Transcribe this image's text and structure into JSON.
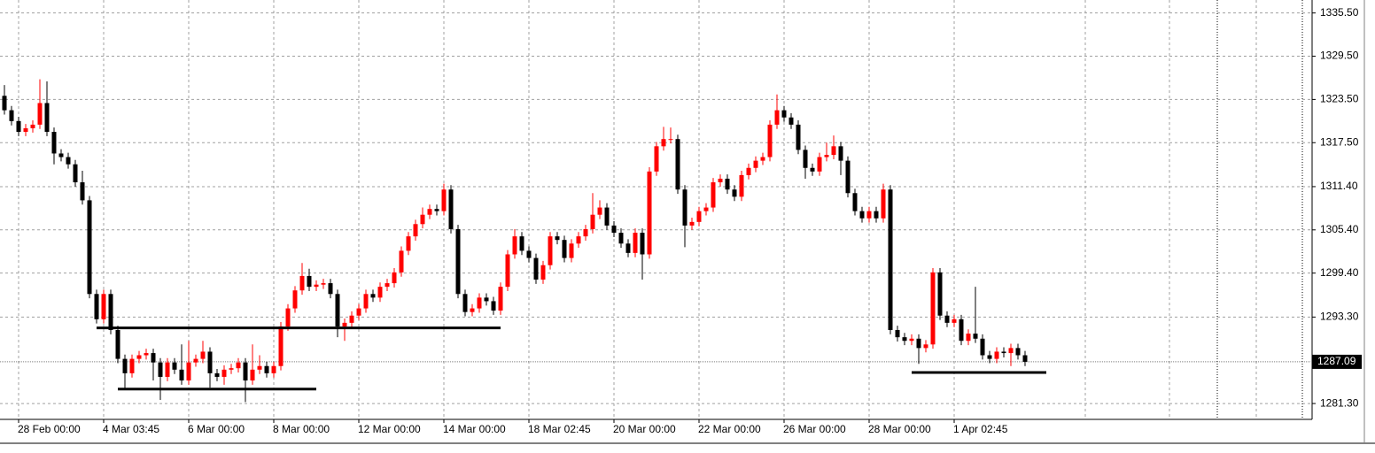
{
  "chart_data": {
    "type": "candlestick",
    "categories": [
      null,
      null,
      "28 Feb 00:00",
      null,
      null,
      null,
      null,
      null,
      null,
      null,
      null,
      null,
      null,
      null,
      "4 Mar 03:45",
      null,
      null,
      null,
      null,
      null,
      null,
      null,
      null,
      null,
      null,
      null,
      "6 Mar 00:00",
      null,
      null,
      null,
      null,
      null,
      null,
      null,
      null,
      null,
      null,
      null,
      "8 Mar 00:00",
      null,
      null,
      null,
      null,
      null,
      null,
      null,
      null,
      null,
      null,
      null,
      "12 Mar 00:00",
      null,
      null,
      null,
      null,
      null,
      null,
      null,
      null,
      null,
      null,
      null,
      "14 Mar 00:00",
      null,
      null,
      null,
      null,
      null,
      null,
      null,
      null,
      null,
      null,
      null,
      "18 Mar 02:45",
      null,
      null,
      null,
      null,
      null,
      null,
      null,
      null,
      null,
      null,
      null,
      "20 Mar 00:00",
      null,
      null,
      null,
      null,
      null,
      null,
      null,
      null,
      null,
      null,
      null,
      "22 Mar 00:00",
      null,
      null,
      null,
      null,
      null,
      null,
      null,
      null,
      null,
      null,
      null,
      "26 Mar 00:00",
      null,
      null,
      null,
      null,
      null,
      null,
      null,
      null,
      null,
      null,
      null,
      "28 Mar 00:00",
      null,
      null,
      null,
      null,
      null,
      null,
      null,
      null,
      null,
      null,
      null,
      "1 Apr 02:45",
      null,
      null,
      null,
      null,
      null,
      null,
      null,
      null,
      null,
      null
    ],
    "open": [
      1324,
      1322,
      1320.5,
      1319,
      1319.5,
      1320,
      1323,
      1319,
      1316,
      1315.5,
      1314.5,
      1312,
      1309.5,
      1296.5,
      1293,
      1296.5,
      1291.5,
      1287.5,
      1285.5,
      1287.5,
      1288,
      1288.3,
      1287,
      1285,
      1287,
      1286,
      1284.5,
      1287,
      1287.5,
      1288.5,
      1285.5,
      1285,
      1286,
      1286.2,
      1287,
      1284.5,
      1286,
      1286.5,
      1285.5,
      1286.5,
      1292,
      1294.5,
      1297,
      1299,
      1297.5,
      1297.8,
      1298,
      1296.5,
      1292,
      1292.5,
      1293.5,
      1294.5,
      1296.5,
      1296,
      1297.5,
      1298,
      1299.5,
      1302.5,
      1304.5,
      1306.2,
      1307.5,
      1308.3,
      1308,
      1311,
      1305.5,
      1296.5,
      1294,
      1294.5,
      1296,
      1295.5,
      1294.2,
      1297.5,
      1302,
      1304.5,
      1302.5,
      1301.5,
      1298.5,
      1300.5,
      1304.5,
      1304,
      1301.5,
      1303.5,
      1304.5,
      1305.5,
      1307.5,
      1308.5,
      1306,
      1305,
      1303.5,
      1302.2,
      1305,
      1302,
      1313.5,
      1317,
      1318,
      1318,
      1311,
      1306,
      1306.5,
      1308,
      1308.5,
      1312,
      1312.5,
      1311,
      1310,
      1313,
      1314,
      1315,
      1315.5,
      1320,
      1322,
      1321,
      1320,
      1316.5,
      1314,
      1313.5,
      1315.5,
      1315.8,
      1317,
      1315,
      1310.5,
      1308,
      1307,
      1308,
      1307,
      1311,
      1291.5,
      1290.5,
      1290,
      1290.3,
      1289,
      1289.5,
      1299.5,
      1293.5,
      1292.5,
      1293,
      1290,
      1291,
      1290.3,
      1288,
      1287.5,
      1288.5,
      1288.3,
      1289,
      1288
    ],
    "high": [
      1325.5,
      1322.6,
      1321.1,
      1320.1,
      1320.6,
      1326.3,
      1326,
      1319.6,
      1316.6,
      1316.1,
      1315.1,
      1313.6,
      1310.1,
      1297.1,
      1297.1,
      1297.1,
      1292.1,
      1288.1,
      1288.1,
      1288.6,
      1288.9,
      1288.9,
      1287.6,
      1287.6,
      1287.6,
      1289.5,
      1290,
      1288.1,
      1290,
      1289.1,
      1286.1,
      1286.6,
      1286.8,
      1287.6,
      1287.6,
      1289.5,
      1288,
      1287.1,
      1287.1,
      1292.6,
      1295.1,
      1297.6,
      1300.8,
      1300,
      1298.4,
      1298.6,
      1298.6,
      1297.1,
      1293.1,
      1294.1,
      1295.1,
      1297.1,
      1297.1,
      1298.1,
      1298.6,
      1300.1,
      1303.1,
      1305.1,
      1306.8,
      1308.5,
      1308.9,
      1308.9,
      1311.8,
      1311.6,
      1306.1,
      1297.1,
      1295.1,
      1296.6,
      1296.6,
      1296.1,
      1298.1,
      1302.6,
      1305.5,
      1305.1,
      1303.1,
      1302.1,
      1301.1,
      1305.1,
      1305.1,
      1304.6,
      1304.1,
      1305.1,
      1306.1,
      1310.5,
      1309.5,
      1309.1,
      1306.6,
      1305.6,
      1304.1,
      1305.6,
      1305.6,
      1314.1,
      1317.6,
      1319.7,
      1319.6,
      1318.6,
      1311.6,
      1307.1,
      1308.6,
      1309.1,
      1312.6,
      1313.1,
      1313.1,
      1311.6,
      1313.6,
      1314.6,
      1315.6,
      1316.1,
      1320.6,
      1324.2,
      1322.6,
      1321.6,
      1320.6,
      1317.1,
      1314.6,
      1316.1,
      1317.5,
      1318.5,
      1317.6,
      1315.6,
      1311.1,
      1308.6,
      1308.6,
      1308.6,
      1311.8,
      1311.6,
      1292.1,
      1291.1,
      1290.9,
      1290.9,
      1290.1,
      1300.1,
      1300.1,
      1294.1,
      1293.6,
      1293.6,
      1291.6,
      1297.5,
      1290.9,
      1288.6,
      1289.1,
      1289.1,
      1289.6,
      1289.6,
      1288.6
    ],
    "low": [
      1321.4,
      1319.9,
      1318.4,
      1318.4,
      1318.9,
      1319.4,
      1318.4,
      1314.5,
      1314.9,
      1313.9,
      1311.4,
      1308.9,
      1295.9,
      1292.4,
      1292.4,
      1290.9,
      1286.9,
      1283.3,
      1284.9,
      1286.9,
      1287.4,
      1284.5,
      1281.8,
      1284.4,
      1285.4,
      1283.9,
      1283.9,
      1286.4,
      1286.9,
      1283.5,
      1284.4,
      1283.9,
      1285.4,
      1285.6,
      1281.5,
      1283.9,
      1285.4,
      1284.9,
      1284.9,
      1285.9,
      1291.4,
      1293.9,
      1296.4,
      1296.9,
      1296.9,
      1297.2,
      1295.9,
      1290.5,
      1290,
      1291.9,
      1292.9,
      1293.9,
      1295.4,
      1295.4,
      1296.9,
      1297.4,
      1298.9,
      1301.9,
      1303.9,
      1305.6,
      1306.9,
      1307.4,
      1307.4,
      1304.9,
      1295.9,
      1293.4,
      1293.4,
      1293.9,
      1294.9,
      1293.6,
      1293.6,
      1296.9,
      1301.4,
      1301.9,
      1300.9,
      1297.9,
      1297.9,
      1299.9,
      1303.4,
      1300.9,
      1300.9,
      1302.9,
      1303.9,
      1304.9,
      1306.9,
      1305.4,
      1304.4,
      1302.9,
      1301.6,
      1301.6,
      1298.5,
      1301.4,
      1312.9,
      1316.4,
      1317.4,
      1310.4,
      1303,
      1305.4,
      1305.9,
      1307.4,
      1307.9,
      1311.4,
      1310.4,
      1309.4,
      1309.4,
      1312.4,
      1313.4,
      1314.4,
      1314.9,
      1319.4,
      1320.4,
      1319.4,
      1315.9,
      1312.5,
      1312.9,
      1312.9,
      1314.9,
      1315.2,
      1313,
      1309.9,
      1307.4,
      1306.4,
      1306.4,
      1306.4,
      1306.4,
      1290.9,
      1289.9,
      1289.4,
      1289.4,
      1286.8,
      1288.4,
      1288.9,
      1292.9,
      1291.9,
      1291.9,
      1289.4,
      1289.4,
      1289.7,
      1287.4,
      1286.9,
      1286.9,
      1287.7,
      1286.5,
      1287.4,
      1286.5
    ],
    "close": [
      1322,
      1320.5,
      1319,
      1319.5,
      1320,
      1323,
      1319,
      1316,
      1315.5,
      1314.5,
      1312,
      1309.5,
      1296.5,
      1293,
      1296.5,
      1291.5,
      1287.5,
      1285.5,
      1287.5,
      1288,
      1288.3,
      1287,
      1285,
      1287,
      1286,
      1284.5,
      1287,
      1287.5,
      1288.5,
      1285.5,
      1285,
      1286,
      1286.2,
      1287,
      1284.5,
      1286,
      1286.5,
      1285.5,
      1286.5,
      1292,
      1294.5,
      1297,
      1299,
      1297.5,
      1297.8,
      1298,
      1296.5,
      1292,
      1292.5,
      1293.5,
      1294.5,
      1296.5,
      1296,
      1297.5,
      1298,
      1299.5,
      1302.5,
      1304.5,
      1306.2,
      1307.5,
      1308.3,
      1308,
      1311,
      1305.5,
      1296.5,
      1294,
      1294.5,
      1296,
      1295.5,
      1294.2,
      1297.5,
      1302,
      1304.5,
      1302.5,
      1301.5,
      1298.5,
      1300.5,
      1304.5,
      1304,
      1301.5,
      1303.5,
      1304.5,
      1305.5,
      1307.5,
      1308.5,
      1306,
      1305,
      1303.5,
      1302.2,
      1305,
      1302,
      1313.5,
      1317,
      1318,
      1318,
      1311,
      1306,
      1306.5,
      1308,
      1308.5,
      1312,
      1312.5,
      1311,
      1310,
      1313,
      1314,
      1315,
      1315.5,
      1320,
      1322,
      1321,
      1320,
      1316.5,
      1314,
      1313.5,
      1315.5,
      1315.8,
      1317,
      1315,
      1310.5,
      1308,
      1307,
      1308,
      1307,
      1311,
      1291.5,
      1290.5,
      1290,
      1290.3,
      1289,
      1289.5,
      1299.5,
      1293.5,
      1292.5,
      1293,
      1290,
      1291,
      1290.3,
      1288,
      1287.5,
      1288.5,
      1288.3,
      1289,
      1288,
      1287.09
    ],
    "up_color": "#ff0000",
    "down_color": "#000000",
    "ylim": [
      1279.1,
      1337.3
    ],
    "yticks": [
      {
        "value": 1335.5,
        "label": "1335.50"
      },
      {
        "value": 1329.5,
        "label": "1329.50"
      },
      {
        "value": 1323.5,
        "label": "1323.50"
      },
      {
        "value": 1317.5,
        "label": "1317.50"
      },
      {
        "value": 1311.4,
        "label": "1311.40"
      },
      {
        "value": 1305.4,
        "label": "1305.40"
      },
      {
        "value": 1299.4,
        "label": "1299.40"
      },
      {
        "value": 1293.3,
        "label": "1293.30"
      },
      {
        "value": 1281.3,
        "label": "1281.30"
      }
    ],
    "grid": true,
    "last_price": 1287.09,
    "hlines": [
      {
        "value": 1291.8,
        "from": 13,
        "to": 70
      },
      {
        "value": 1283.3,
        "from": 16,
        "to": 44
      },
      {
        "value": 1285.6,
        "from": 128,
        "to": 147
      }
    ]
  }
}
